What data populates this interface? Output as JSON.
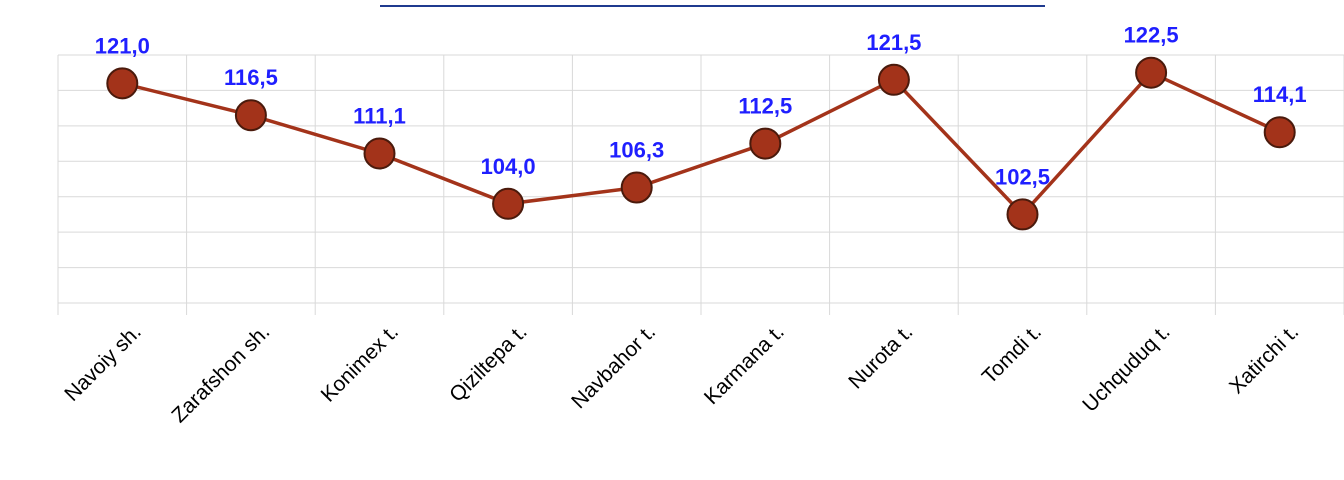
{
  "chart_data": {
    "type": "line",
    "categories": [
      "Navoiy sh.",
      "Zarafshon sh.",
      "Konimex t.",
      "Qiziltepa t.",
      "Navbahor t.",
      "Karmana t.",
      "Nurota t.",
      "Tomdi t.",
      "Uchquduq t.",
      "Xatirchi t."
    ],
    "values": [
      121.0,
      116.5,
      111.1,
      104.0,
      106.3,
      112.5,
      121.5,
      102.5,
      122.5,
      114.1
    ],
    "value_labels": [
      "121,0",
      "116,5",
      "111,1",
      "104,0",
      "106,3",
      "112,5",
      "121,5",
      "102,5",
      "122,5",
      "114,1"
    ],
    "color": "#a3331a",
    "ylim": [
      90,
      125
    ],
    "yticks": [
      90,
      95,
      100,
      105,
      110,
      115,
      120,
      125
    ],
    "grid": true
  }
}
